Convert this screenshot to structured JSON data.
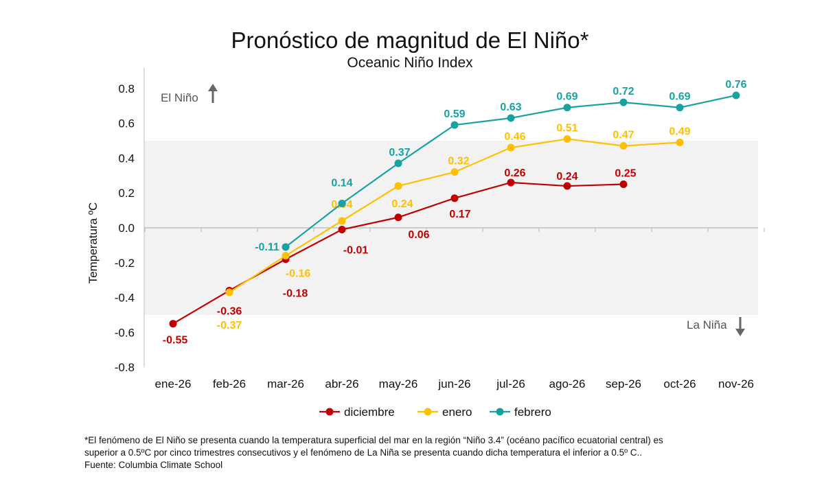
{
  "chart_data": {
    "type": "line",
    "title": "Pronóstico de magnitud de El Niño*",
    "subtitle": "Oceanic Niño Index",
    "ylabel": "Temperatura ºC",
    "xlabel": "",
    "categories": [
      "ene-26",
      "feb-26",
      "mar-26",
      "abr-26",
      "may-26",
      "jun-26",
      "jul-26",
      "ago-26",
      "sep-26",
      "oct-26",
      "nov-26"
    ],
    "ylim": [
      -0.8,
      0.8
    ],
    "yticks": [
      "0.8",
      "0.6",
      "0.4",
      "0.2",
      "0.0",
      "-0.2",
      "-0.4",
      "-0.6",
      "-0.8"
    ],
    "neutral_band": [
      -0.5,
      0.5
    ],
    "annotations": {
      "el_nino": "El Niño",
      "la_nina": "La Niña"
    },
    "legend_position": "bottom",
    "series": [
      {
        "name": "diciembre",
        "color": "#c00000",
        "values": [
          -0.55,
          -0.36,
          -0.18,
          -0.01,
          0.06,
          0.17,
          0.26,
          0.24,
          0.25,
          null,
          null
        ],
        "labels": [
          "-0.55",
          "-0.36",
          "-0.18",
          "-0.01",
          "0.06",
          "0.17",
          "0.26",
          "0.24",
          "0.25",
          null,
          null
        ]
      },
      {
        "name": "enero",
        "color": "#ffc000",
        "values": [
          null,
          -0.37,
          -0.16,
          0.04,
          0.24,
          0.32,
          0.46,
          0.51,
          0.47,
          0.49,
          null
        ],
        "labels": [
          null,
          "-0.37",
          "-0.16",
          "0.04",
          "0.24",
          "0.32",
          "0.46",
          "0.51",
          "0.47",
          "0.49",
          null
        ]
      },
      {
        "name": "febrero",
        "color": "#17a2a2",
        "values": [
          null,
          null,
          -0.11,
          0.14,
          0.37,
          0.59,
          0.63,
          0.69,
          0.72,
          0.69,
          0.76
        ],
        "labels": [
          null,
          null,
          "-0.11",
          "0.14",
          "0.37",
          "0.59",
          "0.63",
          "0.69",
          "0.72",
          "0.69",
          "0.76"
        ]
      }
    ]
  },
  "footnote": {
    "line1": "*El fenómeno de El Niño se presenta cuando la temperatura superficial del mar en la región “Niño 3.4” (océano pacífico ecuatorial central) es",
    "line2": "superior a 0.5ºC por cinco trimestres consecutivos y el fenómeno de La Niña se presenta cuando dicha temperatura el inferior a 0.5º C..",
    "line3": "Fuente: Columbia Climate School"
  }
}
